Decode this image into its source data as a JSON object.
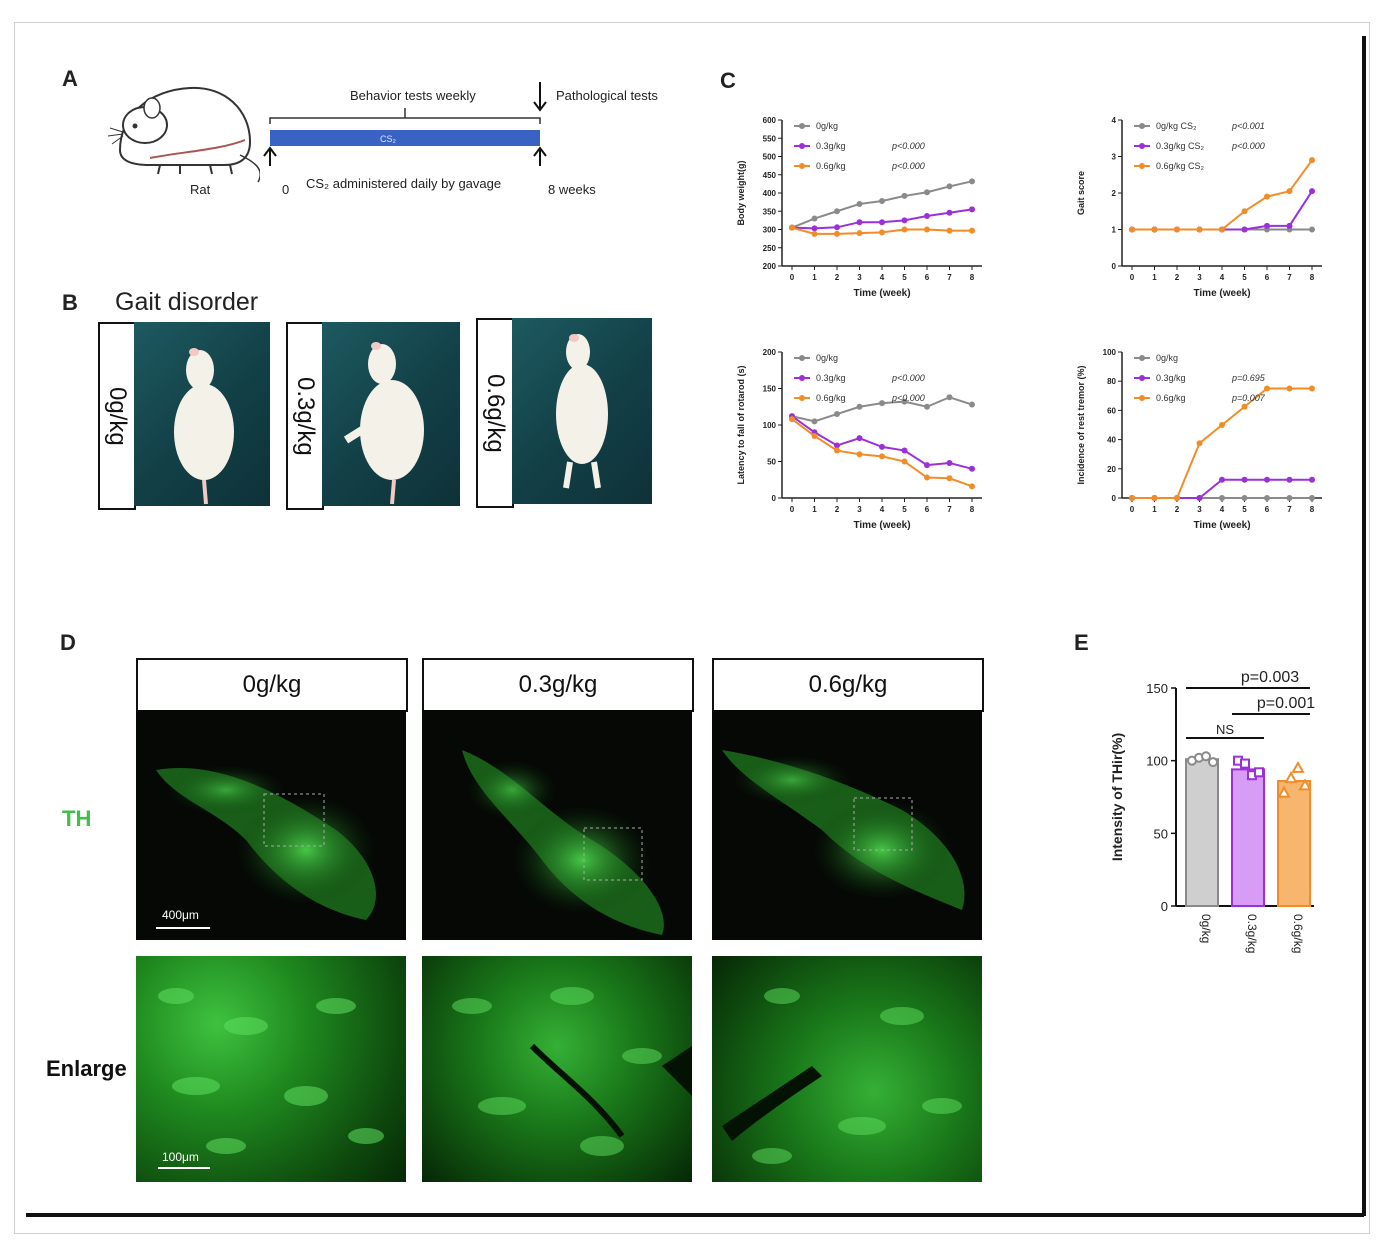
{
  "panel_letters": {
    "a": "A",
    "b": "B",
    "c": "C",
    "d": "D",
    "e": "E"
  },
  "panel_a": {
    "behavior_tests": "Behavior tests weekly",
    "pathological_tests": "Pathological tests",
    "bar_label": "CS₂",
    "rat_label": "Rat",
    "start": "0",
    "admin_text": "CS₂ administered daily by gavage",
    "end": "8 weeks"
  },
  "panel_b": {
    "title": "Gait disorder",
    "doses": [
      "0g/kg",
      "0.3g/kg",
      "0.6g/kg"
    ]
  },
  "colors": {
    "control": "#8a8a8a",
    "low": "#9b30d9",
    "high": "#f28c28"
  },
  "chart_data": [
    {
      "type": "line",
      "id": "body-weight",
      "xlabel": "Time (week)",
      "ylabel": "Body weight(g)",
      "ylim": [
        200,
        600
      ],
      "yticks": [
        "200",
        "250",
        "300",
        "350",
        "400",
        "450",
        "500",
        "550",
        "600"
      ],
      "x": [
        0,
        1,
        2,
        3,
        4,
        5,
        6,
        7,
        8
      ],
      "series": [
        {
          "name": "0g/kg",
          "p": "",
          "values": [
            305,
            330,
            350,
            370,
            378,
            392,
            402,
            418,
            432
          ]
        },
        {
          "name": "0.3g/kg",
          "p": "p<0.000",
          "values": [
            305,
            303,
            306,
            320,
            320,
            325,
            337,
            346,
            355
          ]
        },
        {
          "name": "0.6g/kg",
          "p": "p<0.000",
          "values": [
            305,
            288,
            288,
            290,
            292,
            300,
            300,
            297,
            297
          ]
        }
      ]
    },
    {
      "type": "line",
      "id": "gait-score",
      "xlabel": "Time (week)",
      "ylabel": "Gait score",
      "ylim": [
        0,
        4
      ],
      "yticks": [
        "0",
        "1",
        "2",
        "3",
        "4"
      ],
      "x": [
        0,
        1,
        2,
        3,
        4,
        5,
        6,
        7,
        8
      ],
      "series": [
        {
          "name": "0g/kg CS₂",
          "p": "p<0.001",
          "values": [
            1,
            1,
            1,
            1,
            1,
            1,
            1,
            1,
            1
          ]
        },
        {
          "name": "0.3g/kg CS₂",
          "p": "p<0.000",
          "values": [
            1,
            1,
            1,
            1,
            1,
            1,
            1.1,
            1.1,
            2.05
          ]
        },
        {
          "name": "0.6g/kg CS₂",
          "p": "",
          "values": [
            1,
            1,
            1,
            1,
            1,
            1.5,
            1.9,
            2.05,
            2.9
          ]
        }
      ]
    },
    {
      "type": "line",
      "id": "rotarod",
      "xlabel": "Time (week)",
      "ylabel": "Latency to fall of rotarod (s)",
      "ylim": [
        0,
        200
      ],
      "yticks": [
        "0",
        "50",
        "100",
        "150",
        "200"
      ],
      "x": [
        0,
        1,
        2,
        3,
        4,
        5,
        6,
        7,
        8
      ],
      "series": [
        {
          "name": "0g/kg",
          "p": "",
          "values": [
            112,
            105,
            115,
            125,
            130,
            132,
            125,
            138,
            128
          ]
        },
        {
          "name": "0.3g/kg",
          "p": "p<0.000",
          "values": [
            112,
            90,
            72,
            82,
            70,
            65,
            45,
            48,
            40
          ]
        },
        {
          "name": "0.6g/kg",
          "p": "p<0.000",
          "values": [
            108,
            85,
            65,
            60,
            57,
            50,
            28,
            27,
            16
          ]
        }
      ]
    },
    {
      "type": "line",
      "id": "tremor",
      "xlabel": "Time (week)",
      "ylabel": "Incidence of rest tremor (%)",
      "ylim": [
        0,
        100
      ],
      "yticks": [
        "0",
        "20",
        "40",
        "60",
        "80",
        "100"
      ],
      "x": [
        0,
        1,
        2,
        3,
        4,
        5,
        6,
        7,
        8
      ],
      "series": [
        {
          "name": "0g/kg",
          "p": "",
          "values": [
            0,
            0,
            0,
            0,
            0,
            0,
            0,
            0,
            0
          ]
        },
        {
          "name": "0.3g/kg",
          "p": "p=0.695",
          "values": [
            0,
            0,
            0,
            0,
            12.5,
            12.5,
            12.5,
            12.5,
            12.5
          ]
        },
        {
          "name": "0.6g/kg",
          "p": "p=0.007",
          "values": [
            0,
            0,
            0,
            37.5,
            50,
            62.5,
            75,
            75,
            75
          ]
        }
      ]
    },
    {
      "type": "bar",
      "id": "th-intensity",
      "ylabel": "Intensity of THir(%)",
      "ylim": [
        0,
        150
      ],
      "yticks": [
        "0",
        "50",
        "100",
        "150"
      ],
      "categories": [
        "0g/kg",
        "0.3g/kg",
        "0.6g/kg"
      ],
      "values": [
        101,
        94,
        86
      ],
      "points": [
        [
          100,
          102,
          103,
          99
        ],
        [
          100,
          98,
          90,
          92
        ],
        [
          78,
          88,
          95,
          83
        ]
      ],
      "annotations": [
        "p=0.003",
        "p=0.001",
        "NS"
      ]
    }
  ],
  "panel_d": {
    "columns": [
      "0g/kg",
      "0.3g/kg",
      "0.6g/kg"
    ],
    "row_labels": [
      "TH",
      "Enlarge"
    ],
    "scale_top": "400μm",
    "scale_bottom": "100μm"
  }
}
